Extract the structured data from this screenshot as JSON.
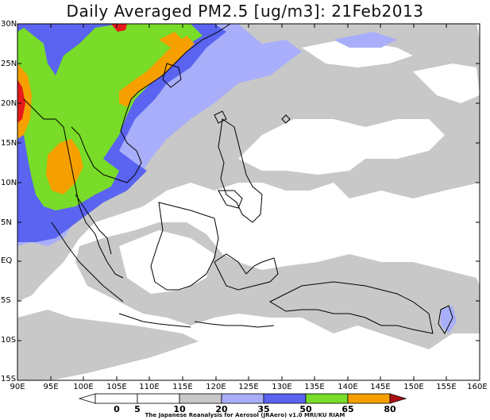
{
  "title": "Daily Averaged PM2.5 [ug/m3]: 21Feb2013",
  "map": {
    "lat_labels": [
      "30N",
      "25N",
      "20N",
      "15N",
      "10N",
      "5N",
      "EQ",
      "5S",
      "10S",
      "15S"
    ],
    "lon_labels": [
      "90E",
      "95E",
      "100E",
      "105E",
      "110E",
      "115E",
      "120E",
      "125E",
      "130E",
      "135E",
      "140E",
      "145E",
      "150E",
      "155E",
      "160E"
    ],
    "fill_colors": {
      "lt5": "#ffffff",
      "5-10": "#ffffff",
      "10-20": "#c8c8c8",
      "20-35": "#a9aefa",
      "35-50": "#5a64f0",
      "50-65": "#78dc28",
      "65-80": "#f5a000",
      "gt80": "#e61a1a"
    }
  },
  "colorbar": {
    "ticks": [
      "0",
      "5",
      "10",
      "20",
      "35",
      "50",
      "65",
      "80"
    ],
    "colors": [
      "#ffffff",
      "#ffffff",
      "#c8c8c8",
      "#a9aefa",
      "#5a64f0",
      "#78dc28",
      "#f5a000",
      "#e61a1a",
      "#b01010"
    ]
  },
  "credit": "The Japanese Reanalysis for Aerosol (JRAero) v1.0 MRI/KU RIAM"
}
